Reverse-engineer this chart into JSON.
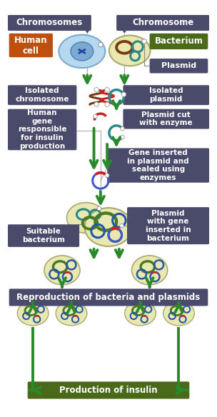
{
  "bg_color": "#ffffff",
  "box_dark": "#4a4a6a",
  "box_orange": "#bf4f0f",
  "box_green": "#4a6a1a",
  "arrow_color": "#2a8a2a",
  "labels": {
    "chromosomes": "Chromosomes",
    "chromosome": "Chromosome",
    "human_cell": "Human\ncell",
    "bacterium": "Bacterium",
    "plasmid": "Plasmid",
    "isolated_chr": "Isolated\nchromosome",
    "isolated_plas": "Isolated\nplasmid",
    "human_gene": "Human\ngene\nresponsible\nfor insulin\nproduction",
    "plasmid_cut": "Plasmid cut\nwith enzyme",
    "gene_inserted": "Gene inserted\nin plasmid and\nsealed using\nenzymes",
    "suitable_bact": "Suitable\nbacterium",
    "plasmid_gene_bact": "Plasmid\nwith gene\ninserted in\nbacterium",
    "reproduction": "Reproduction of bacteria and plasmids",
    "production": "Production of insulin"
  }
}
